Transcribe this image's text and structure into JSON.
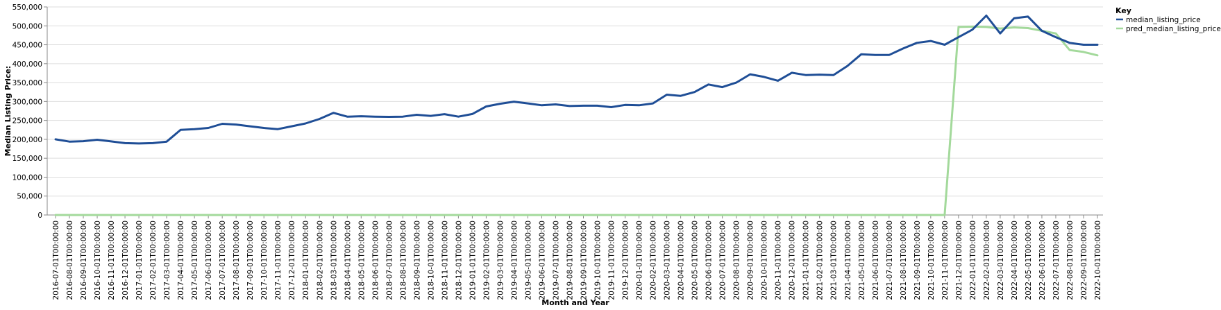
{
  "chart_data": {
    "type": "line",
    "xlabel": "Month and Year",
    "ylabel": "Median Listing Price:",
    "ylim": [
      0,
      550000
    ],
    "yticks": [
      0,
      50000,
      100000,
      150000,
      200000,
      250000,
      300000,
      350000,
      400000,
      450000,
      500000,
      550000
    ],
    "ytick_labels": [
      "0",
      "50,000",
      "100,000",
      "150,000",
      "200,000",
      "250,000",
      "300,000",
      "350,000",
      "400,000",
      "450,000",
      "500,000",
      "550,000"
    ],
    "grid": "horizontal",
    "legend": {
      "title": "Key",
      "placement": "right"
    },
    "x": [
      "2016-07-01T00:00:00",
      "2016-08-01T00:00:00",
      "2016-09-01T00:00:00",
      "2016-10-01T00:00:00",
      "2016-11-01T00:00:00",
      "2016-12-01T00:00:00",
      "2017-01-01T00:00:00",
      "2017-02-01T00:00:00",
      "2017-03-01T00:00:00",
      "2017-04-01T00:00:00",
      "2017-05-01T00:00:00",
      "2017-06-01T00:00:00",
      "2017-07-01T00:00:00",
      "2017-08-01T00:00:00",
      "2017-09-01T00:00:00",
      "2017-10-01T00:00:00",
      "2017-11-01T00:00:00",
      "2017-12-01T00:00:00",
      "2018-01-01T00:00:00",
      "2018-02-01T00:00:00",
      "2018-03-01T00:00:00",
      "2018-04-01T00:00:00",
      "2018-05-01T00:00:00",
      "2018-06-01T00:00:00",
      "2018-07-01T00:00:00",
      "2018-08-01T00:00:00",
      "2018-09-01T00:00:00",
      "2018-10-01T00:00:00",
      "2018-11-01T00:00:00",
      "2018-12-01T00:00:00",
      "2019-01-01T00:00:00",
      "2019-02-01T00:00:00",
      "2019-03-01T00:00:00",
      "2019-04-01T00:00:00",
      "2019-05-01T00:00:00",
      "2019-06-01T00:00:00",
      "2019-07-01T00:00:00",
      "2019-08-01T00:00:00",
      "2019-09-01T00:00:00",
      "2019-10-01T00:00:00",
      "2019-11-01T00:00:00",
      "2019-12-01T00:00:00",
      "2020-01-01T00:00:00",
      "2020-02-01T00:00:00",
      "2020-03-01T00:00:00",
      "2020-04-01T00:00:00",
      "2020-05-01T00:00:00",
      "2020-06-01T00:00:00",
      "2020-07-01T00:00:00",
      "2020-08-01T00:00:00",
      "2020-09-01T00:00:00",
      "2020-10-01T00:00:00",
      "2020-11-01T00:00:00",
      "2020-12-01T00:00:00",
      "2021-01-01T00:00:00",
      "2021-02-01T00:00:00",
      "2021-03-01T00:00:00",
      "2021-04-01T00:00:00",
      "2021-05-01T00:00:00",
      "2021-06-01T00:00:00",
      "2021-07-01T00:00:00",
      "2021-08-01T00:00:00",
      "2021-09-01T00:00:00",
      "2021-10-01T00:00:00",
      "2021-11-01T00:00:00",
      "2021-12-01T00:00:00",
      "2022-01-01T00:00:00",
      "2022-02-01T00:00:00",
      "2022-03-01T00:00:00",
      "2022-04-01T00:00:00",
      "2022-05-01T00:00:00",
      "2022-06-01T00:00:00",
      "2022-07-01T00:00:00",
      "2022-08-01T00:00:00",
      "2022-09-01T00:00:00",
      "2022-10-01T00:00:00"
    ],
    "series": [
      {
        "name": "median_listing_price",
        "color": "#1f4e96",
        "values": [
          200000,
          194000,
          195000,
          199000,
          194500,
          190000,
          189000,
          190000,
          194000,
          225000,
          227000,
          230000,
          241000,
          239000,
          234500,
          230000,
          227000,
          234500,
          242000,
          254000,
          270000,
          260000,
          261000,
          260000,
          259500,
          260000,
          265000,
          262000,
          266500,
          260000,
          267000,
          287000,
          294000,
          299500,
          295000,
          290000,
          292500,
          288000,
          289000,
          289000,
          285000,
          291000,
          290000,
          295000,
          318000,
          315000,
          325000,
          345000,
          338000,
          350000,
          372000,
          365000,
          355000,
          376000,
          370000,
          371000,
          370000,
          394000,
          425000,
          423000,
          423000,
          440000,
          455000,
          460000,
          450000,
          470000,
          490000,
          527000,
          480000,
          520000,
          524500,
          487000,
          470000,
          455000,
          450000,
          450000
        ]
      },
      {
        "name": "pred_median_listing_price",
        "color": "#a3d99b",
        "values": [
          0,
          0,
          0,
          0,
          0,
          0,
          0,
          0,
          0,
          0,
          0,
          0,
          0,
          0,
          0,
          0,
          0,
          0,
          0,
          0,
          0,
          0,
          0,
          0,
          0,
          0,
          0,
          0,
          0,
          0,
          0,
          0,
          0,
          0,
          0,
          0,
          0,
          0,
          0,
          0,
          0,
          0,
          0,
          0,
          0,
          0,
          0,
          0,
          0,
          0,
          0,
          0,
          0,
          0,
          0,
          0,
          0,
          0,
          0,
          0,
          0,
          0,
          0,
          0,
          0,
          497000,
          498000,
          497000,
          493000,
          496000,
          494000,
          487000,
          480000,
          436000,
          431000,
          422000
        ]
      }
    ]
  }
}
